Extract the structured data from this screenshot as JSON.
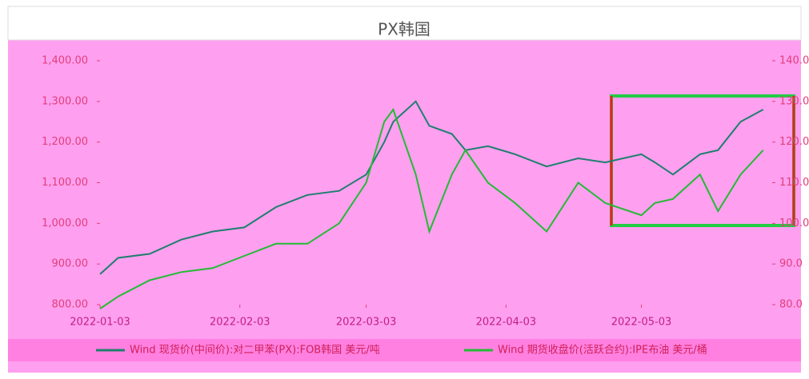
{
  "chart_data": {
    "type": "line",
    "title": "PX韩国",
    "x": [
      "2022-01-03",
      "2022-01-07",
      "2022-01-14",
      "2022-01-21",
      "2022-01-28",
      "2022-02-04",
      "2022-02-11",
      "2022-02-18",
      "2022-02-25",
      "2022-03-03",
      "2022-03-07",
      "2022-03-09",
      "2022-03-14",
      "2022-03-17",
      "2022-03-22",
      "2022-03-25",
      "2022-03-30",
      "2022-04-05",
      "2022-04-12",
      "2022-04-19",
      "2022-04-25",
      "2022-05-03",
      "2022-05-06",
      "2022-05-10",
      "2022-05-16",
      "2022-05-20",
      "2022-05-25",
      "2022-05-30"
    ],
    "series": [
      {
        "name": "Wind 现货价(中间价):对二甲苯(PX):FOB韩国 美元/吨",
        "color": "#1e7f6e",
        "values": [
          875,
          915,
          925,
          960,
          980,
          990,
          1040,
          1070,
          1080,
          1120,
          1200,
          1250,
          1300,
          1240,
          1220,
          1180,
          1190,
          1170,
          1140,
          1160,
          1150,
          1170,
          1150,
          1120,
          1170,
          1180,
          1250,
          1280
        ]
      },
      {
        "name": "Wind 期货收盘价(活跃合约):IPE布油 美元/桶",
        "color": "#22bb33",
        "axis": "y2",
        "values": [
          79,
          82,
          86,
          88,
          89,
          92,
          95,
          95,
          100,
          110,
          125,
          128,
          112,
          98,
          112,
          118,
          110,
          105,
          98,
          110,
          105,
          102,
          105,
          106,
          112,
          103,
          112,
          118
        ]
      }
    ],
    "xlim": [
      "2022-01-03",
      "2022-06-01"
    ],
    "xticks": [
      "2022-01-03",
      "2022-02-03",
      "2022-03-03",
      "2022-04-03",
      "2022-05-03"
    ],
    "ylim": [
      800,
      1400
    ],
    "yticks": [
      {
        "value": 800,
        "label": "800.00"
      },
      {
        "value": 900,
        "label": "900.00"
      },
      {
        "value": 1000,
        "label": "1,000.00"
      },
      {
        "value": 1100,
        "label": "1,100.00"
      },
      {
        "value": 1200,
        "label": "1,200.00"
      },
      {
        "value": 1300,
        "label": "1,300.00"
      },
      {
        "value": 1400,
        "label": "1,400.00"
      }
    ],
    "y2lim": [
      80,
      140
    ],
    "y2ticks": [
      {
        "value": 80,
        "label": "80.0"
      },
      {
        "value": 90,
        "label": "90.0"
      },
      {
        "value": 100,
        "label": "100.0"
      },
      {
        "value": 110,
        "label": "110.0"
      },
      {
        "value": 120,
        "label": "120.0"
      },
      {
        "value": 130,
        "label": "130.0"
      },
      {
        "value": 140,
        "label": "140.0"
      }
    ]
  }
}
